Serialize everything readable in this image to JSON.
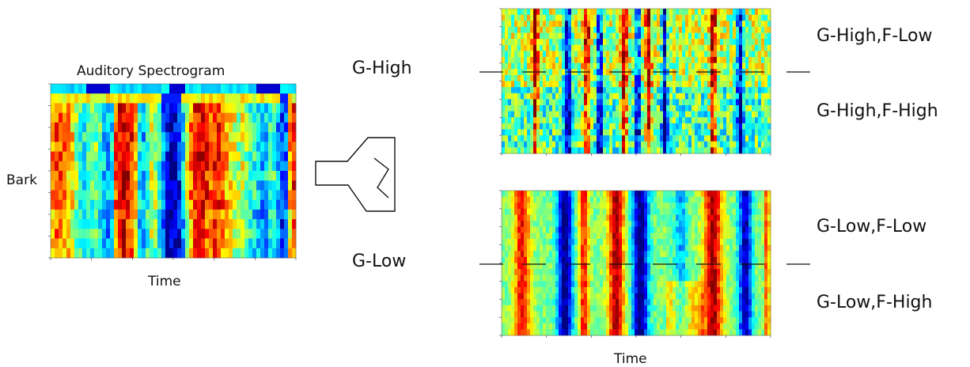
{
  "left_panel": {
    "title": "Auditory Spectrogram",
    "ylabel": "Bark",
    "xlabel": "Time"
  },
  "branch_labels": {
    "high": "G-High",
    "low": "G-Low"
  },
  "right_panels": {
    "xlabel": "Time",
    "top_upper": "G-High,F-Low",
    "top_lower": "G-High,F-High",
    "bottom_upper": "G-Low,F-Low",
    "bottom_lower": "G-Low,F-High"
  },
  "colormap": "jet",
  "colors": {
    "line": "#111111",
    "background": "#ffffff"
  }
}
